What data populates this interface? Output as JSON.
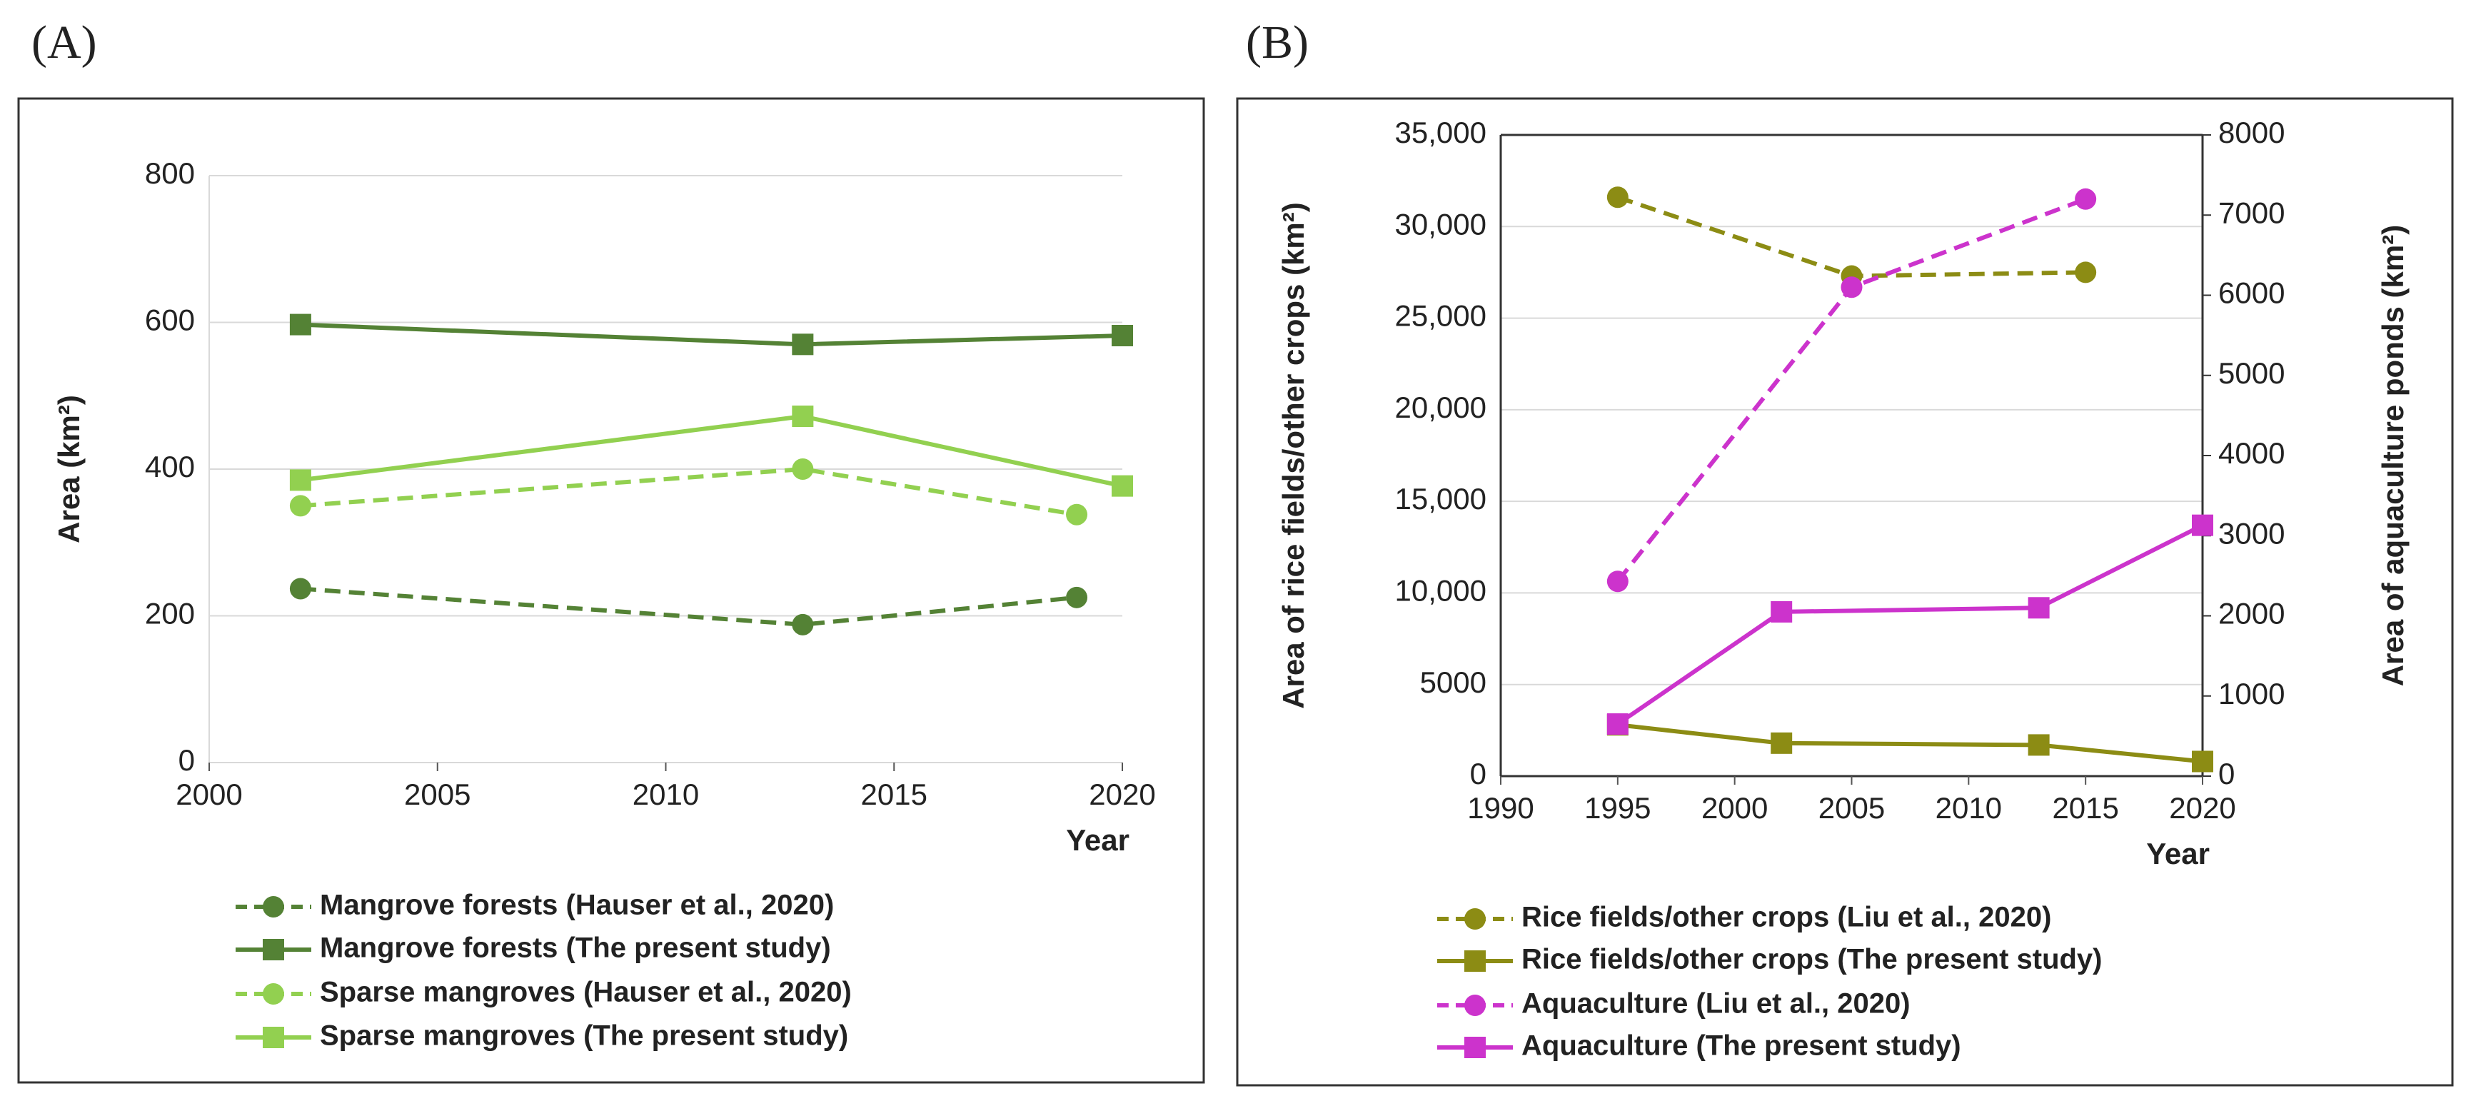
{
  "chart_data": [
    {
      "type": "line",
      "panel_label": "(A)",
      "ylabel": "Area (km²)",
      "xlabel": "Year",
      "xlim": [
        2000,
        2020
      ],
      "xticks": [
        2000,
        2005,
        2010,
        2015,
        2020
      ],
      "ylim": [
        0,
        800
      ],
      "yticks": [
        0,
        200,
        400,
        600,
        800
      ],
      "grid": true,
      "series": [
        {
          "name": "Mangrove forests (Hauser et al., 2020)",
          "color": "#548235",
          "dashed": true,
          "marker": "circle",
          "x": [
            2002,
            2013,
            2019
          ],
          "values": [
            237,
            188,
            225
          ]
        },
        {
          "name": "Mangrove forests (The present study)",
          "color": "#548235",
          "dashed": false,
          "marker": "square",
          "x": [
            2002,
            2013,
            2020
          ],
          "values": [
            597,
            570,
            582
          ]
        },
        {
          "name": "Sparse mangroves (Hauser et al., 2020)",
          "color": "#92d050",
          "dashed": true,
          "marker": "circle",
          "x": [
            2002,
            2013,
            2019
          ],
          "values": [
            350,
            400,
            338
          ]
        },
        {
          "name": "Sparse mangroves (The present study)",
          "color": "#92d050",
          "dashed": false,
          "marker": "square",
          "x": [
            2002,
            2013,
            2020
          ],
          "values": [
            385,
            472,
            377
          ]
        }
      ]
    },
    {
      "type": "line",
      "panel_label": "(B)",
      "ylabel": "Area of rice fields/other crops (km²)",
      "y2label": "Area of aquaculture ponds  (km²)",
      "xlabel": "Year",
      "xlim": [
        1990,
        2020
      ],
      "xticks": [
        1990,
        1995,
        2000,
        2005,
        2010,
        2015,
        2020
      ],
      "ylim": [
        0,
        35000
      ],
      "yticks": [
        0,
        5000,
        {
          "value": 10000,
          "label": "10,000"
        },
        {
          "value": 15000,
          "label": "15,000"
        },
        {
          "value": 20000,
          "label": "20,000"
        },
        {
          "value": 25000,
          "label": "25,000"
        },
        {
          "value": 30000,
          "label": "30,000"
        },
        {
          "value": 35000,
          "label": "35,000"
        }
      ],
      "y2lim": [
        0,
        8000
      ],
      "y2ticks": [
        0,
        1000,
        2000,
        3000,
        4000,
        5000,
        6000,
        7000,
        8000
      ],
      "grid": true,
      "series": [
        {
          "name": "Rice fields/other crops (Liu et al., 2020)",
          "color": "#8c8c14",
          "dashed": true,
          "marker": "circle",
          "x": [
            1995,
            2005,
            2015
          ],
          "values": [
            31600,
            27300,
            27500
          ]
        },
        {
          "name": "Rice fields/other crops (The present study)",
          "color": "#8c8c14",
          "dashed": false,
          "marker": "square",
          "x": [
            1995,
            2002,
            2013,
            2020
          ],
          "values": [
            2800,
            1800,
            1700,
            800
          ]
        },
        {
          "name": "Aquaculture (Liu et al., 2020)",
          "color": "#cc33cc",
          "dashed": true,
          "marker": "circle",
          "axis": "y2",
          "x": [
            1995,
            2005,
            2015
          ],
          "values": [
            2430,
            6100,
            7200
          ]
        },
        {
          "name": "Aquaculture (The present study)",
          "color": "#cc33cc",
          "dashed": false,
          "marker": "square",
          "axis": "y2",
          "x": [
            1995,
            2002,
            2013,
            2020
          ],
          "values": [
            650,
            2050,
            2100,
            3130
          ]
        }
      ]
    }
  ]
}
